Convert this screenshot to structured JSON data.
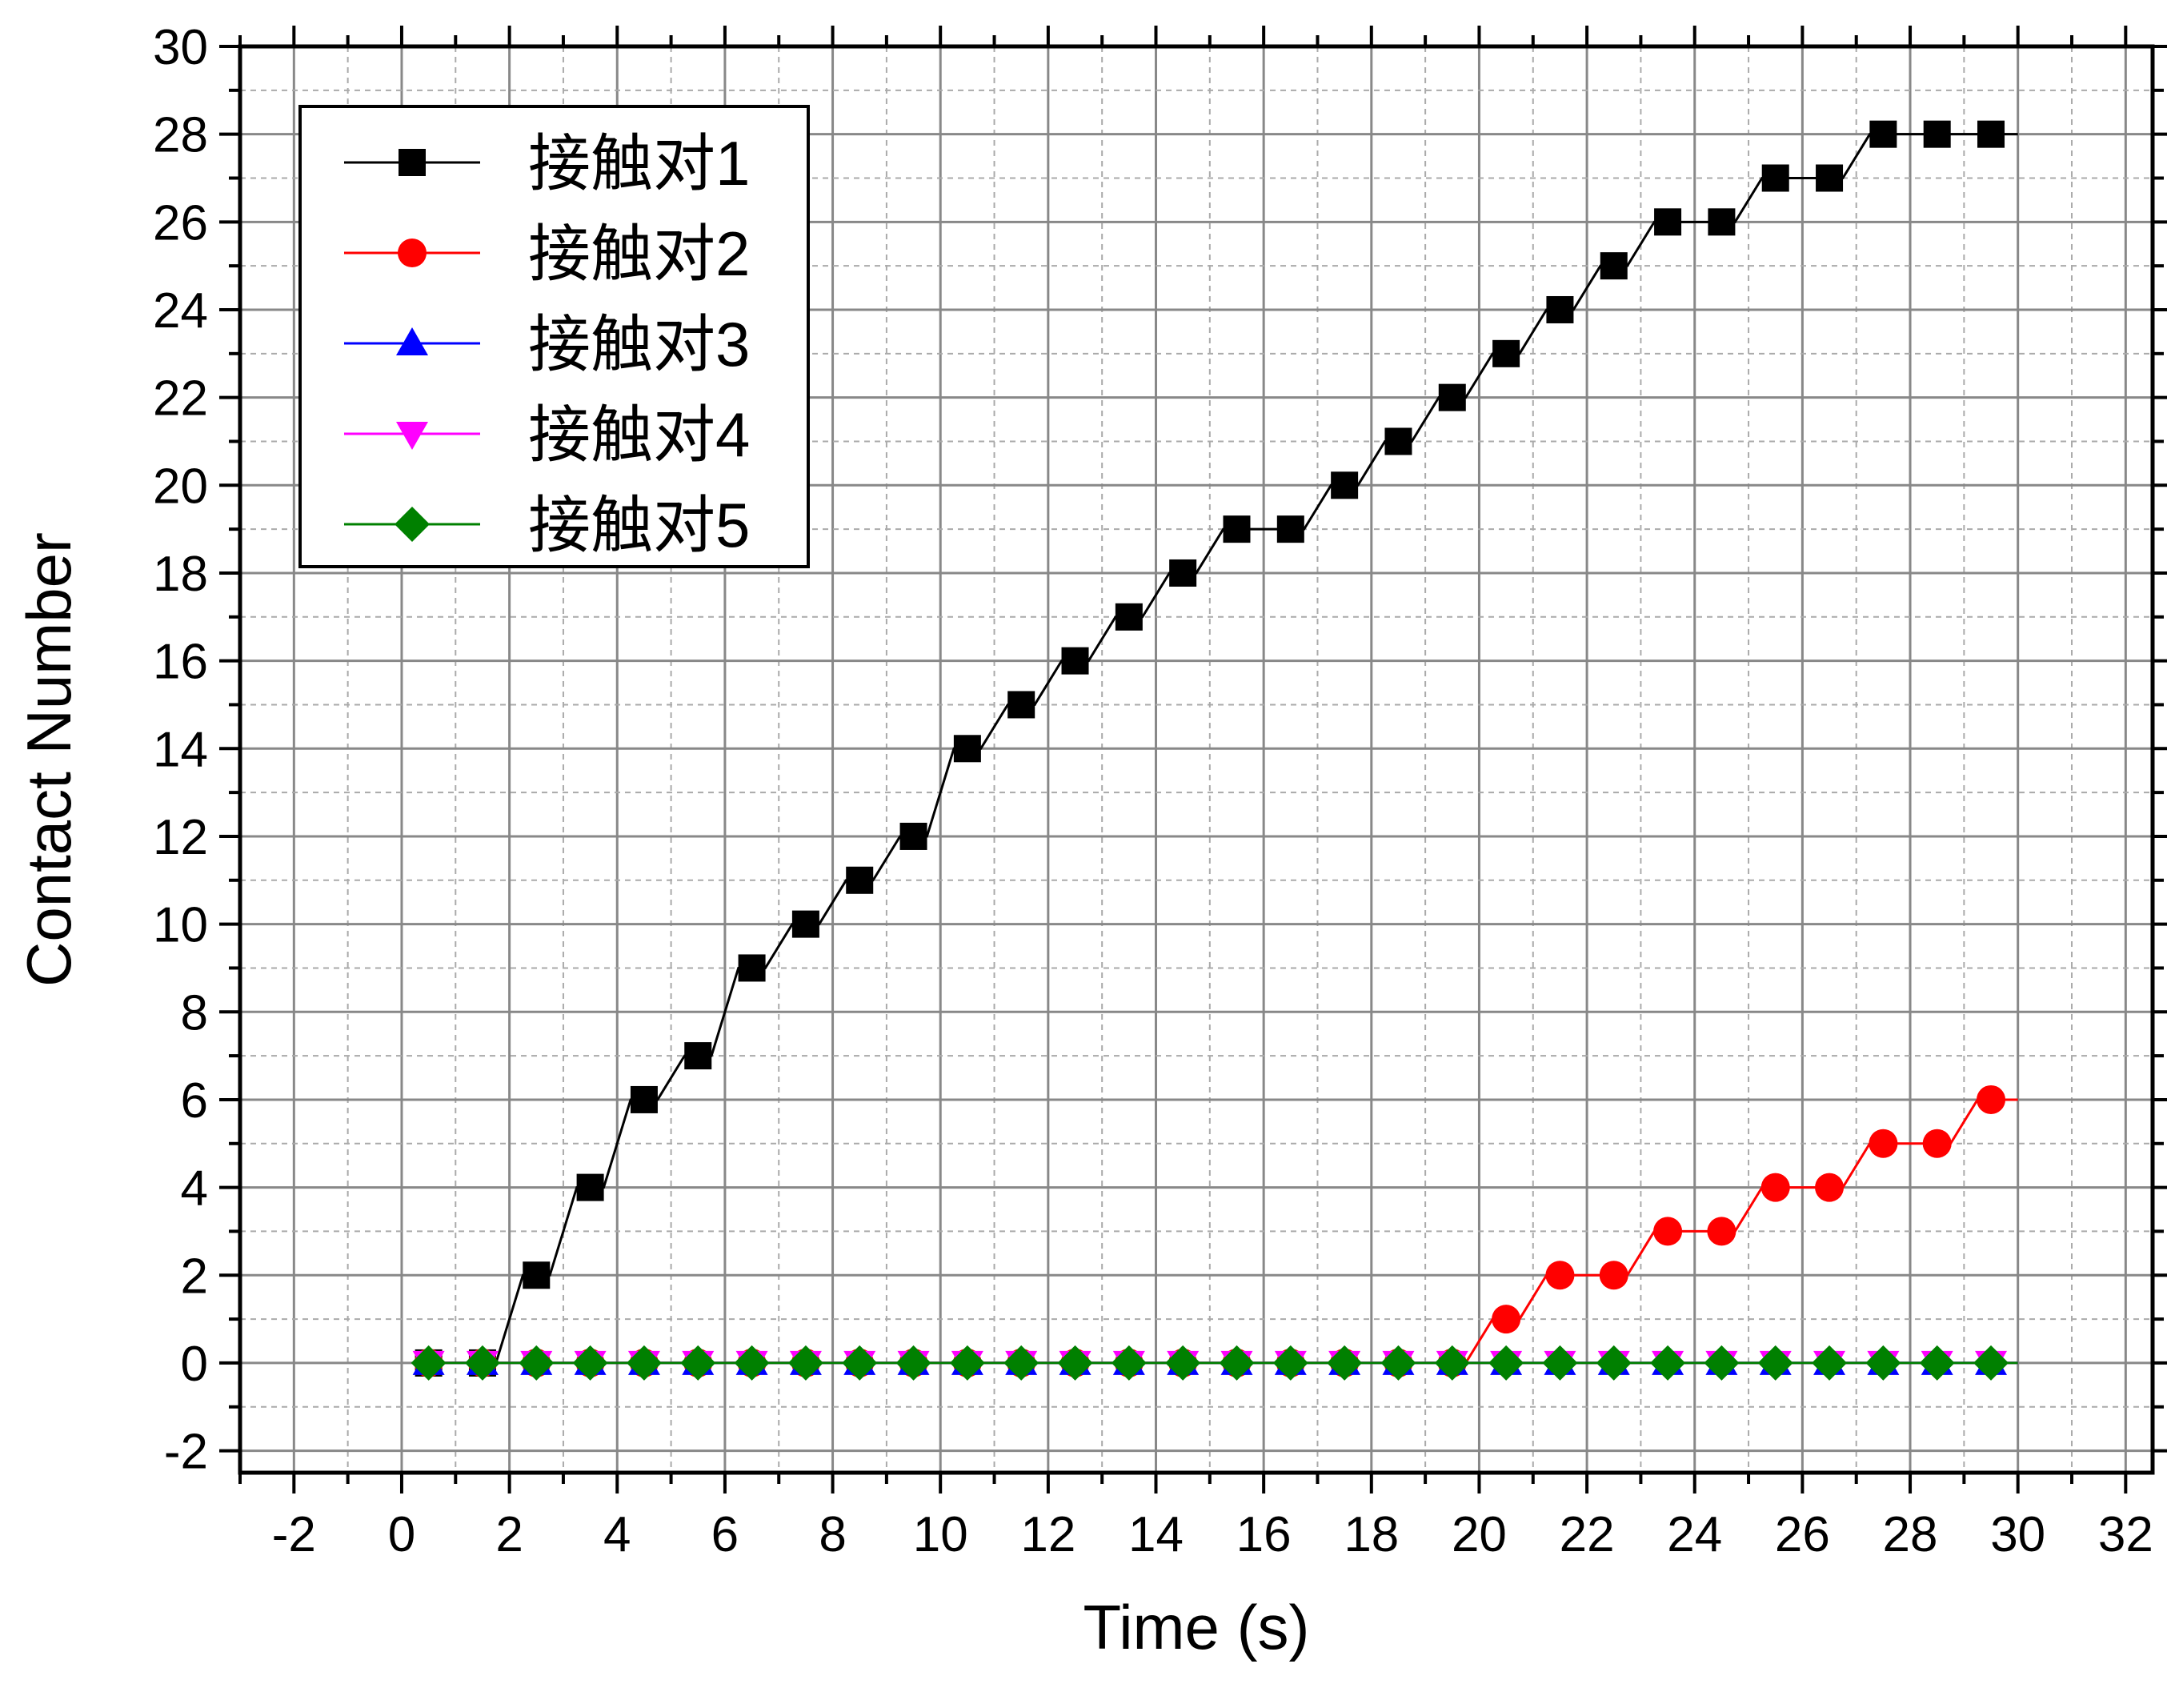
{
  "chart_data": {
    "type": "line",
    "xlabel": "Time (s)",
    "ylabel": "Contact Number",
    "xlim": [
      -3,
      32.5
    ],
    "ylim": [
      -2.5,
      30
    ],
    "xticks": [
      "-2",
      "0",
      "2",
      "4",
      "6",
      "8",
      "10",
      "12",
      "14",
      "16",
      "18",
      "20",
      "22",
      "24",
      "26",
      "28",
      "30",
      "32"
    ],
    "yticks": [
      "-2",
      "0",
      "2",
      "4",
      "6",
      "8",
      "10",
      "12",
      "14",
      "16",
      "18",
      "20",
      "22",
      "24",
      "26",
      "28",
      "30"
    ],
    "grid": true,
    "legend_position": "top-left",
    "x": [
      0.5,
      1.5,
      2.5,
      3.5,
      4.5,
      5.5,
      6.5,
      7.5,
      8.5,
      9.5,
      10.5,
      11.5,
      12.5,
      13.5,
      14.5,
      15.5,
      16.5,
      17.5,
      18.5,
      19.5,
      20.5,
      21.5,
      22.5,
      23.5,
      24.5,
      25.5,
      26.5,
      27.5,
      28.5,
      29.5
    ],
    "series": [
      {
        "name": "接触对1",
        "color": "#000000",
        "marker": "square",
        "values": [
          0,
          0,
          2,
          4,
          6,
          7,
          9,
          10,
          11,
          12,
          14,
          15,
          16,
          17,
          18,
          19,
          19,
          20,
          21,
          22,
          23,
          24,
          25,
          26,
          26,
          27,
          27,
          28,
          28,
          28
        ]
      },
      {
        "name": "接触对2",
        "color": "#ff0000",
        "marker": "circle",
        "values": [
          0,
          0,
          0,
          0,
          0,
          0,
          0,
          0,
          0,
          0,
          0,
          0,
          0,
          0,
          0,
          0,
          0,
          0,
          0,
          0,
          1,
          2,
          2,
          3,
          3,
          4,
          4,
          5,
          5,
          6
        ]
      },
      {
        "name": "接触对3",
        "color": "#0000ff",
        "marker": "triangle-up",
        "values": [
          0,
          0,
          0,
          0,
          0,
          0,
          0,
          0,
          0,
          0,
          0,
          0,
          0,
          0,
          0,
          0,
          0,
          0,
          0,
          0,
          0,
          0,
          0,
          0,
          0,
          0,
          0,
          0,
          0,
          0
        ]
      },
      {
        "name": "接触对4",
        "color": "#ff00ff",
        "marker": "triangle-down",
        "values": [
          0,
          0,
          0,
          0,
          0,
          0,
          0,
          0,
          0,
          0,
          0,
          0,
          0,
          0,
          0,
          0,
          0,
          0,
          0,
          0,
          0,
          0,
          0,
          0,
          0,
          0,
          0,
          0,
          0,
          0
        ]
      },
      {
        "name": "接触对5",
        "color": "#008000",
        "marker": "diamond",
        "values": [
          0,
          0,
          0,
          0,
          0,
          0,
          0,
          0,
          0,
          0,
          0,
          0,
          0,
          0,
          0,
          0,
          0,
          0,
          0,
          0,
          0,
          0,
          0,
          0,
          0,
          0,
          0,
          0,
          0,
          0
        ]
      }
    ]
  }
}
